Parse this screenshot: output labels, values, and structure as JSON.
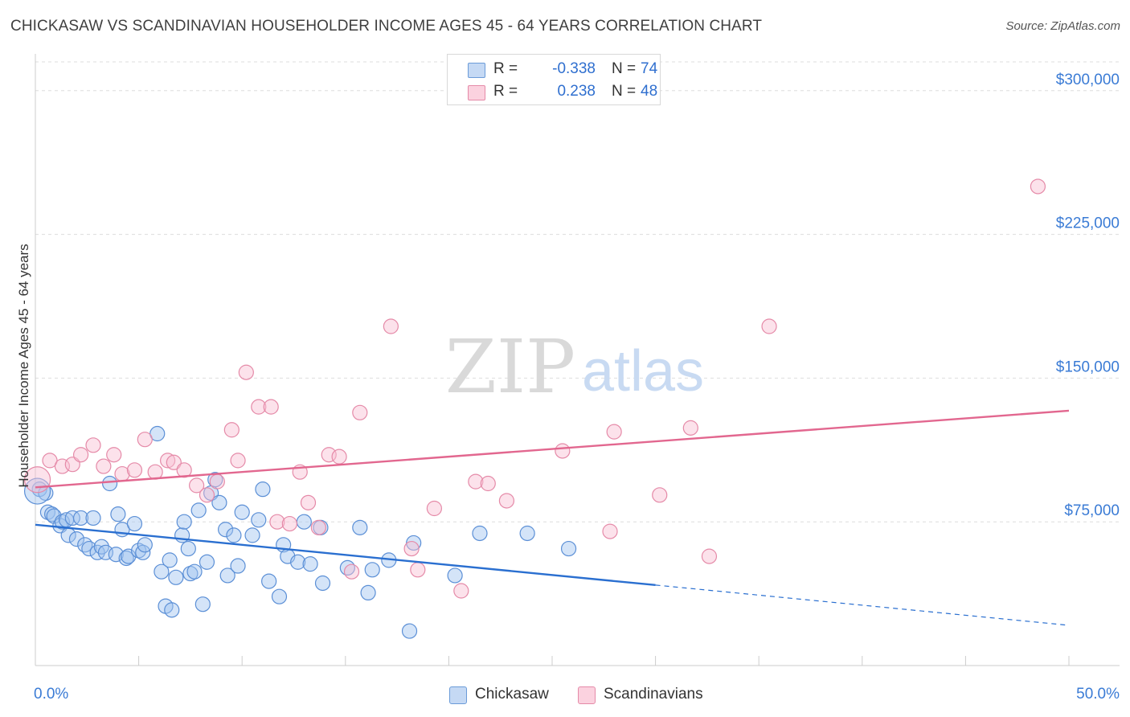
{
  "title": "CHICKASAW VS SCANDINAVIAN HOUSEHOLDER INCOME AGES 45 - 64 YEARS CORRELATION CHART",
  "source": "Source: ZipAtlas.com",
  "watermark": {
    "zip": "ZIP",
    "atlas": "atlas"
  },
  "stats": [
    {
      "r_label": "R =",
      "r_value": "-0.338",
      "n_label": "N =",
      "n_value": "74",
      "color": "#a9c7f0",
      "border": "#6b9bd8"
    },
    {
      "r_label": "R =",
      "r_value": "0.238",
      "n_label": "N =",
      "n_value": "48",
      "color": "#f8c3d4",
      "border": "#e58aa8"
    }
  ],
  "legend": [
    {
      "label": "Chickasaw",
      "color": "#c5d9f4",
      "border": "#6b9bd8"
    },
    {
      "label": "Scandinavians",
      "color": "#fbd2df",
      "border": "#e58aa8"
    }
  ],
  "chart_data": {
    "type": "scatter",
    "title": "CHICKASAW VS SCANDINAVIAN HOUSEHOLDER INCOME AGES 45 - 64 YEARS CORRELATION CHART",
    "xlabel": "",
    "ylabel": "Householder Income Ages 45 - 64 years",
    "xlim": [
      0,
      50
    ],
    "ylim": [
      0,
      315000
    ],
    "x_tick_labels": [
      "0.0%",
      "50.0%"
    ],
    "y_ticks": [
      75000,
      150000,
      225000,
      300000
    ],
    "y_tick_labels": [
      "$75,000",
      "$150,000",
      "$225,000",
      "$300,000"
    ],
    "grid": true,
    "series": [
      {
        "name": "Chickasaw",
        "color": "#5b8fd6",
        "fill": "rgba(160,195,240,0.45)",
        "line_color": "#2a6fd0",
        "trend": {
          "x0": 0,
          "y0": 73500,
          "x1": 30,
          "y1": 42000,
          "dash_to_x": 50,
          "dash_to_y": 21000
        },
        "points": [
          [
            0.2,
            92000
          ],
          [
            0.5,
            90000
          ],
          [
            0.6,
            80000
          ],
          [
            0.8,
            79000
          ],
          [
            0.9,
            78000
          ],
          [
            1.2,
            73000
          ],
          [
            1.3,
            75000
          ],
          [
            1.5,
            76000
          ],
          [
            1.6,
            68000
          ],
          [
            1.8,
            77000
          ],
          [
            2.0,
            66000
          ],
          [
            2.2,
            77000
          ],
          [
            2.4,
            63000
          ],
          [
            2.6,
            61000
          ],
          [
            2.8,
            77000
          ],
          [
            3.0,
            59000
          ],
          [
            3.2,
            62000
          ],
          [
            3.4,
            59000
          ],
          [
            3.6,
            95000
          ],
          [
            3.9,
            58000
          ],
          [
            4.0,
            79000
          ],
          [
            4.2,
            71000
          ],
          [
            4.4,
            56000
          ],
          [
            4.5,
            57000
          ],
          [
            4.8,
            74000
          ],
          [
            5.0,
            60000
          ],
          [
            5.2,
            59000
          ],
          [
            5.3,
            63000
          ],
          [
            5.9,
            121000
          ],
          [
            6.1,
            49000
          ],
          [
            6.3,
            31000
          ],
          [
            6.5,
            55000
          ],
          [
            6.6,
            29000
          ],
          [
            6.8,
            46000
          ],
          [
            7.1,
            68000
          ],
          [
            7.2,
            75000
          ],
          [
            7.4,
            61000
          ],
          [
            7.5,
            48000
          ],
          [
            7.7,
            49000
          ],
          [
            7.9,
            81000
          ],
          [
            8.1,
            32000
          ],
          [
            8.3,
            54000
          ],
          [
            8.5,
            90000
          ],
          [
            8.7,
            97000
          ],
          [
            8.9,
            85000
          ],
          [
            9.2,
            71000
          ],
          [
            9.3,
            47000
          ],
          [
            9.6,
            68000
          ],
          [
            9.8,
            52000
          ],
          [
            10.0,
            80000
          ],
          [
            10.5,
            68000
          ],
          [
            10.8,
            76000
          ],
          [
            11.0,
            92000
          ],
          [
            11.3,
            44000
          ],
          [
            11.8,
            36000
          ],
          [
            12.0,
            63000
          ],
          [
            12.2,
            57000
          ],
          [
            12.7,
            54000
          ],
          [
            13.0,
            75000
          ],
          [
            13.3,
            53000
          ],
          [
            13.8,
            72000
          ],
          [
            13.9,
            43000
          ],
          [
            15.1,
            51000
          ],
          [
            15.7,
            72000
          ],
          [
            16.1,
            38000
          ],
          [
            16.3,
            50000
          ],
          [
            17.1,
            55000
          ],
          [
            18.1,
            18000
          ],
          [
            18.3,
            64000
          ],
          [
            20.3,
            47000
          ],
          [
            21.5,
            69000
          ],
          [
            23.8,
            69000
          ],
          [
            25.8,
            61000
          ],
          [
            0.1,
            91000
          ]
        ]
      },
      {
        "name": "Scandinavians",
        "color": "#e58aa8",
        "fill": "rgba(248,190,210,0.45)",
        "line_color": "#e2678f",
        "trend": {
          "x0": 0,
          "y0": 93000,
          "x1": 50,
          "y1": 133000
        },
        "points": [
          [
            0.1,
            97000
          ],
          [
            0.7,
            107000
          ],
          [
            1.3,
            104000
          ],
          [
            1.8,
            105000
          ],
          [
            2.2,
            110000
          ],
          [
            2.8,
            115000
          ],
          [
            3.3,
            104000
          ],
          [
            3.8,
            110000
          ],
          [
            4.2,
            100000
          ],
          [
            4.8,
            102000
          ],
          [
            5.3,
            118000
          ],
          [
            5.8,
            101000
          ],
          [
            6.4,
            107000
          ],
          [
            6.7,
            106000
          ],
          [
            7.2,
            102000
          ],
          [
            7.8,
            94000
          ],
          [
            8.3,
            89000
          ],
          [
            8.8,
            96000
          ],
          [
            9.5,
            123000
          ],
          [
            9.8,
            107000
          ],
          [
            10.2,
            153000
          ],
          [
            10.8,
            135000
          ],
          [
            11.4,
            135000
          ],
          [
            11.7,
            75000
          ],
          [
            12.3,
            74000
          ],
          [
            12.8,
            101000
          ],
          [
            13.2,
            85000
          ],
          [
            13.7,
            72000
          ],
          [
            14.2,
            110000
          ],
          [
            14.7,
            109000
          ],
          [
            15.3,
            49000
          ],
          [
            15.7,
            132000
          ],
          [
            17.2,
            177000
          ],
          [
            18.2,
            61000
          ],
          [
            18.5,
            50000
          ],
          [
            19.3,
            82000
          ],
          [
            20.6,
            39000
          ],
          [
            21.3,
            96000
          ],
          [
            21.9,
            95000
          ],
          [
            22.8,
            86000
          ],
          [
            25.5,
            112000
          ],
          [
            27.8,
            70000
          ],
          [
            28.0,
            122000
          ],
          [
            30.2,
            89000
          ],
          [
            31.7,
            124000
          ],
          [
            32.6,
            57000
          ],
          [
            35.5,
            177000
          ],
          [
            48.5,
            250000
          ]
        ]
      }
    ]
  }
}
